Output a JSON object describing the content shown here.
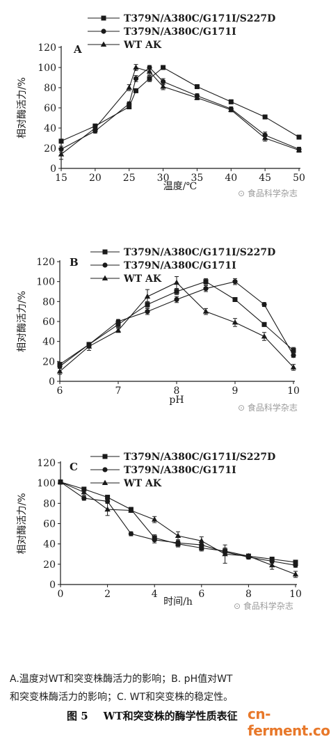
{
  "watermark": "食品科学杂志",
  "legend_names": [
    "T379N/A380C/G171I/S227D",
    "T379N/A380C/G171I",
    "WT AK"
  ],
  "colors": {
    "ink": "#1a1a1a",
    "site": "#e8782a"
  },
  "caption": {
    "line1": "A.温度对WT和突变株酶活力的影响；B. pH值对WT",
    "line2": "和突变株酶活力的影响；C. WT和突变株的稳定性。",
    "fig_number": "图 5",
    "fig_title": "WT和突变株的酶学性质表征",
    "site": "cn-ferment.com"
  },
  "chart_data": [
    {
      "type": "line",
      "panel_label": "A",
      "xlabel": "温度/℃",
      "ylabel": "相对酶活力/%",
      "xlim": [
        15,
        50
      ],
      "ylim": [
        0,
        120
      ],
      "xticks": [
        15,
        20,
        25,
        30,
        35,
        40,
        45,
        50
      ],
      "yticks": [
        0,
        20,
        40,
        60,
        80,
        100,
        120
      ],
      "legend_position": "top",
      "series": [
        {
          "name": "T379N/A380C/G171I/S227D",
          "marker": "square",
          "x": [
            15,
            20,
            25,
            26,
            28,
            30,
            35,
            40,
            45,
            50
          ],
          "y": [
            27,
            42,
            61,
            77,
            89,
            100,
            81,
            66,
            51,
            31
          ],
          "err": [
            2,
            2,
            2,
            2,
            3,
            1,
            2,
            2,
            1,
            2
          ]
        },
        {
          "name": "T379N/A380C/G171I",
          "marker": "circle",
          "x": [
            15,
            20,
            25,
            26,
            28,
            30,
            35,
            40,
            45,
            50
          ],
          "y": [
            19,
            37,
            64,
            89,
            100,
            86,
            72,
            59,
            33,
            19
          ],
          "err": [
            3,
            2,
            2,
            3,
            2,
            3,
            2,
            2,
            3,
            2
          ]
        },
        {
          "name": "WT AK",
          "marker": "triangle",
          "x": [
            15,
            20,
            25,
            26,
            28,
            30,
            35,
            40,
            45,
            50
          ],
          "y": [
            14,
            40,
            80,
            100,
            96,
            81,
            70,
            58,
            30,
            18
          ],
          "err": [
            5,
            3,
            3,
            3,
            3,
            3,
            2,
            2,
            3,
            2
          ]
        }
      ]
    },
    {
      "type": "line",
      "panel_label": "B",
      "xlabel": "pH",
      "ylabel": "相对酶活力/%",
      "xlim": [
        6,
        10
      ],
      "ylim": [
        0,
        120
      ],
      "xticks": [
        6,
        7,
        8,
        9,
        10
      ],
      "yticks": [
        0,
        20,
        40,
        60,
        80,
        100,
        120
      ],
      "legend_position": "top",
      "series": [
        {
          "name": "T379N/A380C/G171I/S227D",
          "marker": "square",
          "x": [
            6,
            6.5,
            7,
            7.5,
            8,
            8.5,
            9,
            9.5,
            10
          ],
          "y": [
            17,
            37,
            57,
            77,
            90,
            100,
            82,
            57,
            31
          ],
          "err": [
            2,
            2,
            3,
            3,
            3,
            3,
            2,
            2,
            3
          ]
        },
        {
          "name": "T379N/A380C/G171I",
          "marker": "circle",
          "x": [
            6,
            6.5,
            7,
            7.5,
            8,
            8.5,
            9,
            9.5,
            10
          ],
          "y": [
            15,
            37,
            60,
            70,
            82,
            93,
            100,
            77,
            26
          ],
          "err": [
            2,
            2,
            2,
            3,
            3,
            3,
            3,
            2,
            2
          ]
        },
        {
          "name": "WT AK",
          "marker": "triangle",
          "x": [
            6,
            6.5,
            7,
            7.5,
            8,
            8.5,
            9,
            9.5,
            10
          ],
          "y": [
            10,
            35,
            51,
            85,
            99,
            70,
            59,
            45,
            14
          ],
          "err": [
            3,
            4,
            2,
            7,
            6,
            3,
            4,
            4,
            3
          ]
        }
      ]
    },
    {
      "type": "line",
      "panel_label": "C",
      "xlabel": "时间/h",
      "ylabel": "相对酶活力/%",
      "xlim": [
        0,
        10
      ],
      "ylim": [
        0,
        120
      ],
      "xticks": [
        0,
        2,
        4,
        6,
        8,
        10
      ],
      "yticks": [
        0,
        20,
        40,
        60,
        80,
        100,
        120
      ],
      "legend_position": "top",
      "series": [
        {
          "name": "T379N/A380C/G171I/S227D",
          "marker": "square",
          "x": [
            0,
            1,
            2,
            3,
            4,
            5,
            6,
            7,
            8,
            9,
            10
          ],
          "y": [
            101,
            94,
            86,
            74,
            46,
            40,
            36,
            33,
            28,
            25,
            22
          ],
          "err": [
            2,
            2,
            2,
            2,
            3,
            3,
            3,
            3,
            2,
            2,
            2
          ]
        },
        {
          "name": "T379N/A380C/G171I",
          "marker": "circle",
          "x": [
            0,
            1,
            2,
            3,
            4,
            5,
            6,
            7,
            8,
            9,
            10
          ],
          "y": [
            101,
            85,
            82,
            50,
            44,
            41,
            39,
            32,
            27,
            23,
            19
          ],
          "err": [
            2,
            2,
            2,
            2,
            3,
            3,
            3,
            3,
            2,
            2,
            2
          ]
        },
        {
          "name": "WT AK",
          "marker": "triangle",
          "x": [
            0,
            1,
            2,
            3,
            4,
            5,
            6,
            7,
            8,
            9,
            10
          ],
          "y": [
            101,
            91,
            74,
            73,
            64,
            48,
            43,
            30,
            28,
            19,
            10
          ],
          "err": [
            2,
            3,
            6,
            2,
            3,
            4,
            4,
            9,
            2,
            4,
            3
          ]
        }
      ]
    }
  ]
}
